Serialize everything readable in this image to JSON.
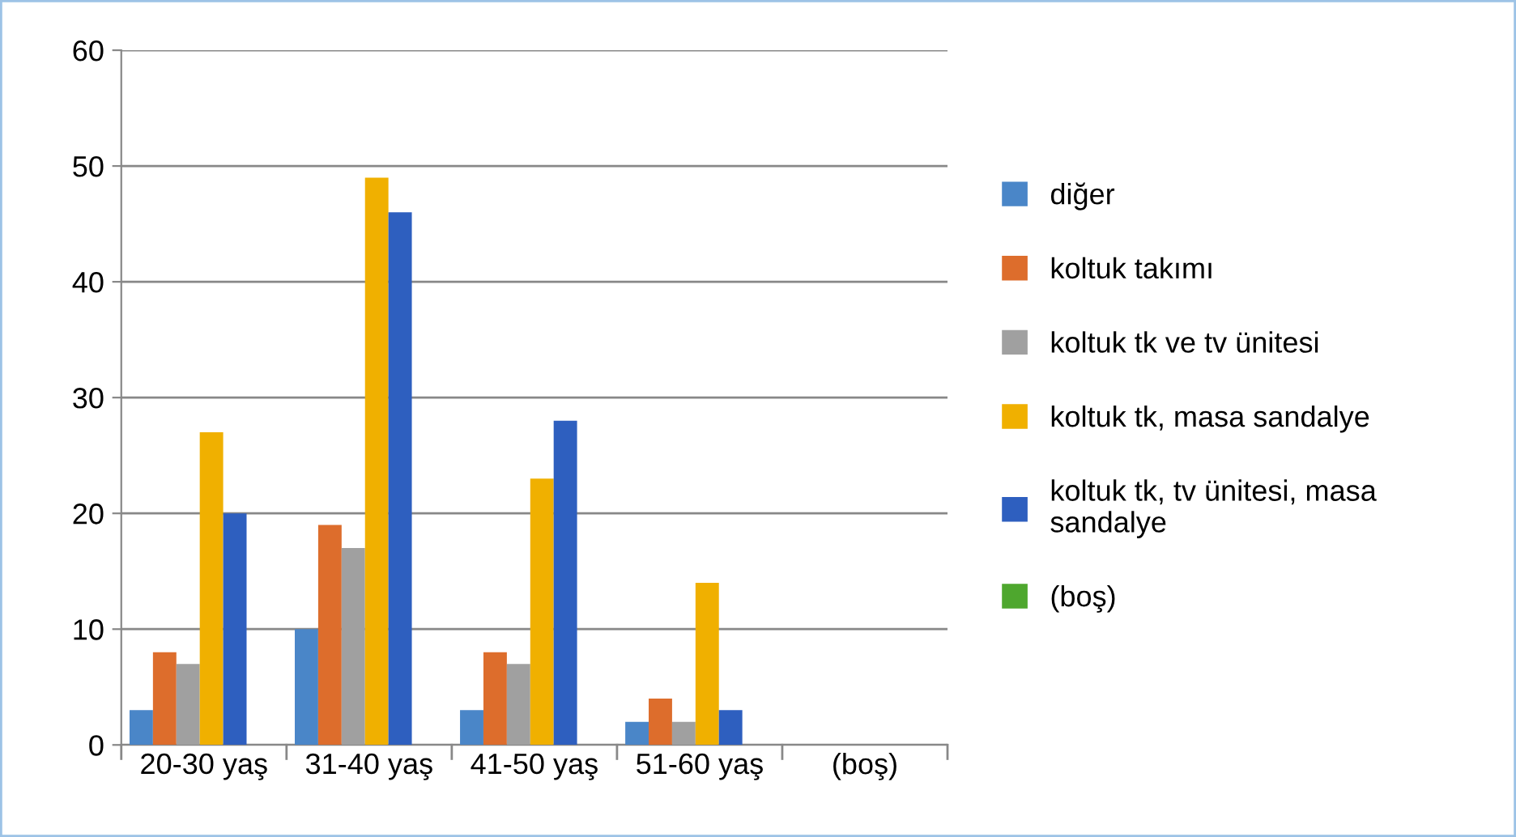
{
  "chart_data": {
    "type": "bar",
    "categories": [
      "20-30 yaş",
      "31-40 yaş",
      "41-50 yaş",
      "51-60 yaş",
      "(boş)"
    ],
    "series": [
      {
        "name": "diğer",
        "color": "#4a86c8",
        "values": [
          3,
          10,
          3,
          2,
          null
        ]
      },
      {
        "name": "koltuk takımı",
        "color": "#dd6d2c",
        "values": [
          8,
          19,
          8,
          4,
          null
        ]
      },
      {
        "name": "koltuk tk ve tv ünitesi",
        "color": "#a0a0a0",
        "values": [
          7,
          17,
          7,
          2,
          null
        ]
      },
      {
        "name": "koltuk tk, masa sandalye",
        "color": "#f0b000",
        "values": [
          27,
          49,
          23,
          14,
          null
        ]
      },
      {
        "name": "koltuk tk, tv ünitesi, masa\nsandalye",
        "color": "#2e5fbf",
        "values": [
          20,
          46,
          28,
          3,
          null
        ]
      },
      {
        "name": "(boş)",
        "color": "#4ea72e",
        "values": [
          null,
          null,
          null,
          null,
          null
        ]
      }
    ],
    "ylim": [
      0,
      60
    ],
    "yticks": [
      0,
      10,
      20,
      30,
      40,
      50,
      60
    ],
    "grid": "y",
    "legend": "right"
  }
}
